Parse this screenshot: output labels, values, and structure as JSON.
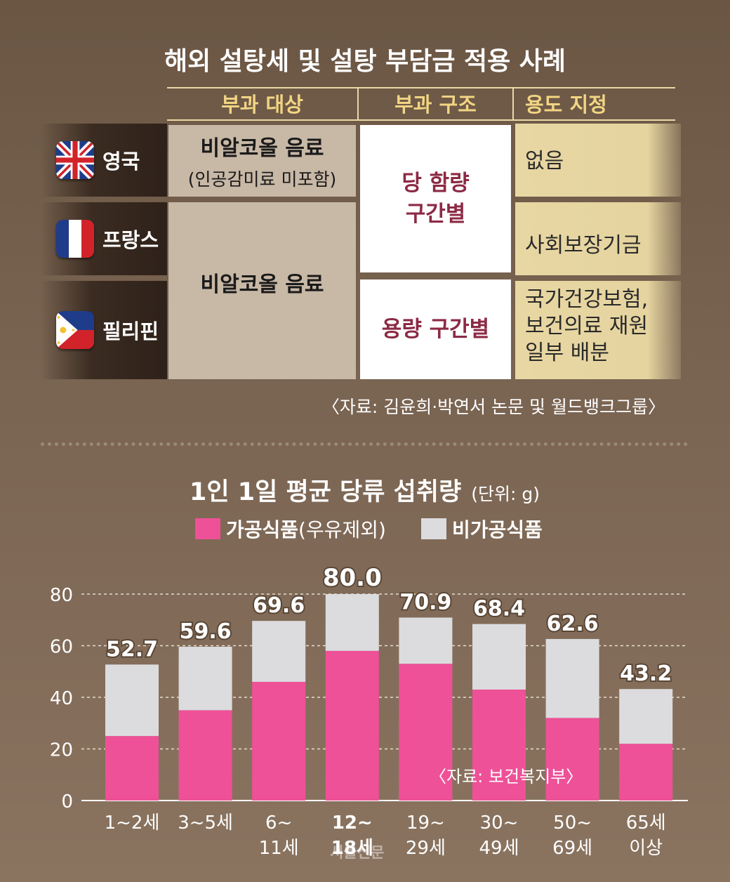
{
  "table": {
    "title": "해외 설탕세 및 설탕 부담금 적용 사례",
    "headers": [
      "부과 대상",
      "부과 구조",
      "용도 지정"
    ],
    "countries": [
      {
        "name": "영국",
        "flag": "uk-flag-icon",
        "target": "비알코올 음료",
        "target_note": "(인공감미료 미포함)",
        "usage": "없음"
      },
      {
        "name": "프랑스",
        "flag": "france-flag-icon",
        "usage": "사회보장기금"
      },
      {
        "name": "필리핀",
        "flag": "philippines-flag-icon",
        "usage_lines": [
          "국가건강보험,",
          "보건의료 재원",
          "일부 배분"
        ]
      }
    ],
    "shared_target": "비알코올 음료",
    "structure_sugar": [
      "당 함량",
      "구간별"
    ],
    "structure_volume": "용량 구간별",
    "source": "〈자료: 김윤희·박연서 논문 및 월드뱅크그룹〉"
  },
  "chart_data": {
    "type": "bar",
    "stacked": true,
    "title": "1인 1일 평균 당류 섭취량",
    "unit": "(단위: g)",
    "categories": [
      [
        "1~2세"
      ],
      [
        "3~5세"
      ],
      [
        "6~",
        "11세"
      ],
      [
        "12~",
        "18세"
      ],
      [
        "19~",
        "29세"
      ],
      [
        "30~",
        "49세"
      ],
      [
        "50~",
        "69세"
      ],
      [
        "65세",
        "이상"
      ]
    ],
    "highlight_index": 3,
    "series": [
      {
        "name": "가공식품",
        "name_note": "(우유제외)",
        "color": "#ee5197",
        "values": [
          25,
          35,
          46,
          58,
          53,
          43,
          32,
          22
        ]
      },
      {
        "name": "비가공식품",
        "color": "#dcdcde",
        "values": [
          27.7,
          24.6,
          23.6,
          22,
          17.9,
          25.4,
          30.6,
          21.2
        ]
      }
    ],
    "totals": [
      "52.7",
      "59.6",
      "69.6",
      "80.0",
      "70.9",
      "68.4",
      "62.6",
      "43.2"
    ],
    "yticks": [
      0,
      20,
      40,
      60,
      80
    ],
    "ylim": [
      0,
      80
    ],
    "grid": true,
    "legend_position": "top",
    "source": "〈자료: 보건복지부〉"
  },
  "watermark": "서울신문"
}
